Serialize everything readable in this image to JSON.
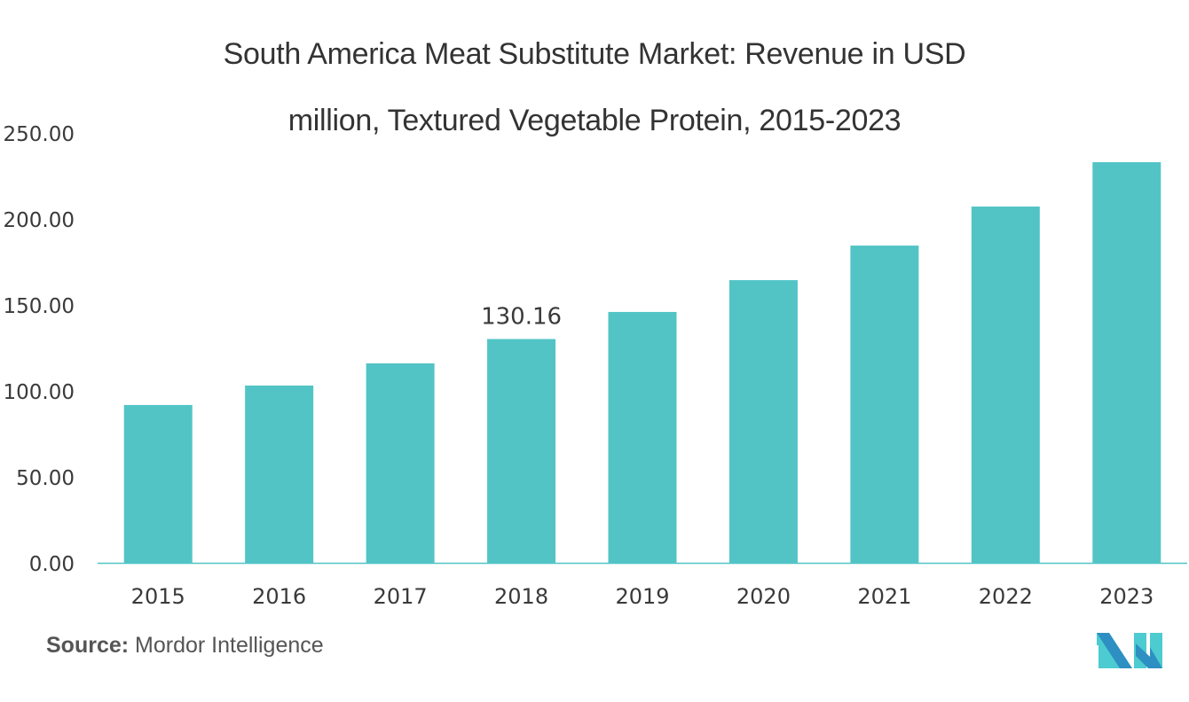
{
  "title_line1": "South America Meat Substitute Market: Revenue in USD",
  "title_line2": "million, Textured Vegetable Protein, 2015-2023",
  "source_label": "Source:",
  "source_value": "Mordor Intelligence",
  "logo_icon": "mordor-intelligence-logo",
  "colors": {
    "bar": "#52C4C6",
    "axis": "#52C4C6",
    "text": "#3a3a3a",
    "logo_dark": "#2E8FC2",
    "logo_light": "#4CCBD0"
  },
  "chart_data": {
    "type": "bar",
    "title": "South America Meat Substitute Market: Revenue in USD million, Textured Vegetable Protein, 2015-2023",
    "xlabel": "",
    "ylabel": "",
    "categories": [
      "2015",
      "2016",
      "2017",
      "2018",
      "2019",
      "2020",
      "2021",
      "2022",
      "2023"
    ],
    "values": [
      91.8,
      103.1,
      116.0,
      130.16,
      145.9,
      164.4,
      184.5,
      207.2,
      233.0
    ],
    "ylim": [
      0,
      250
    ],
    "yticks": [
      0,
      50,
      100,
      150,
      200,
      250
    ],
    "ytick_labels": [
      "0.00",
      "50.00",
      "100.00",
      "150.00",
      "200.00",
      "250.00"
    ],
    "data_labels": [
      {
        "category": "2018",
        "text": "130.16"
      }
    ],
    "grid": false,
    "legend": "none"
  }
}
